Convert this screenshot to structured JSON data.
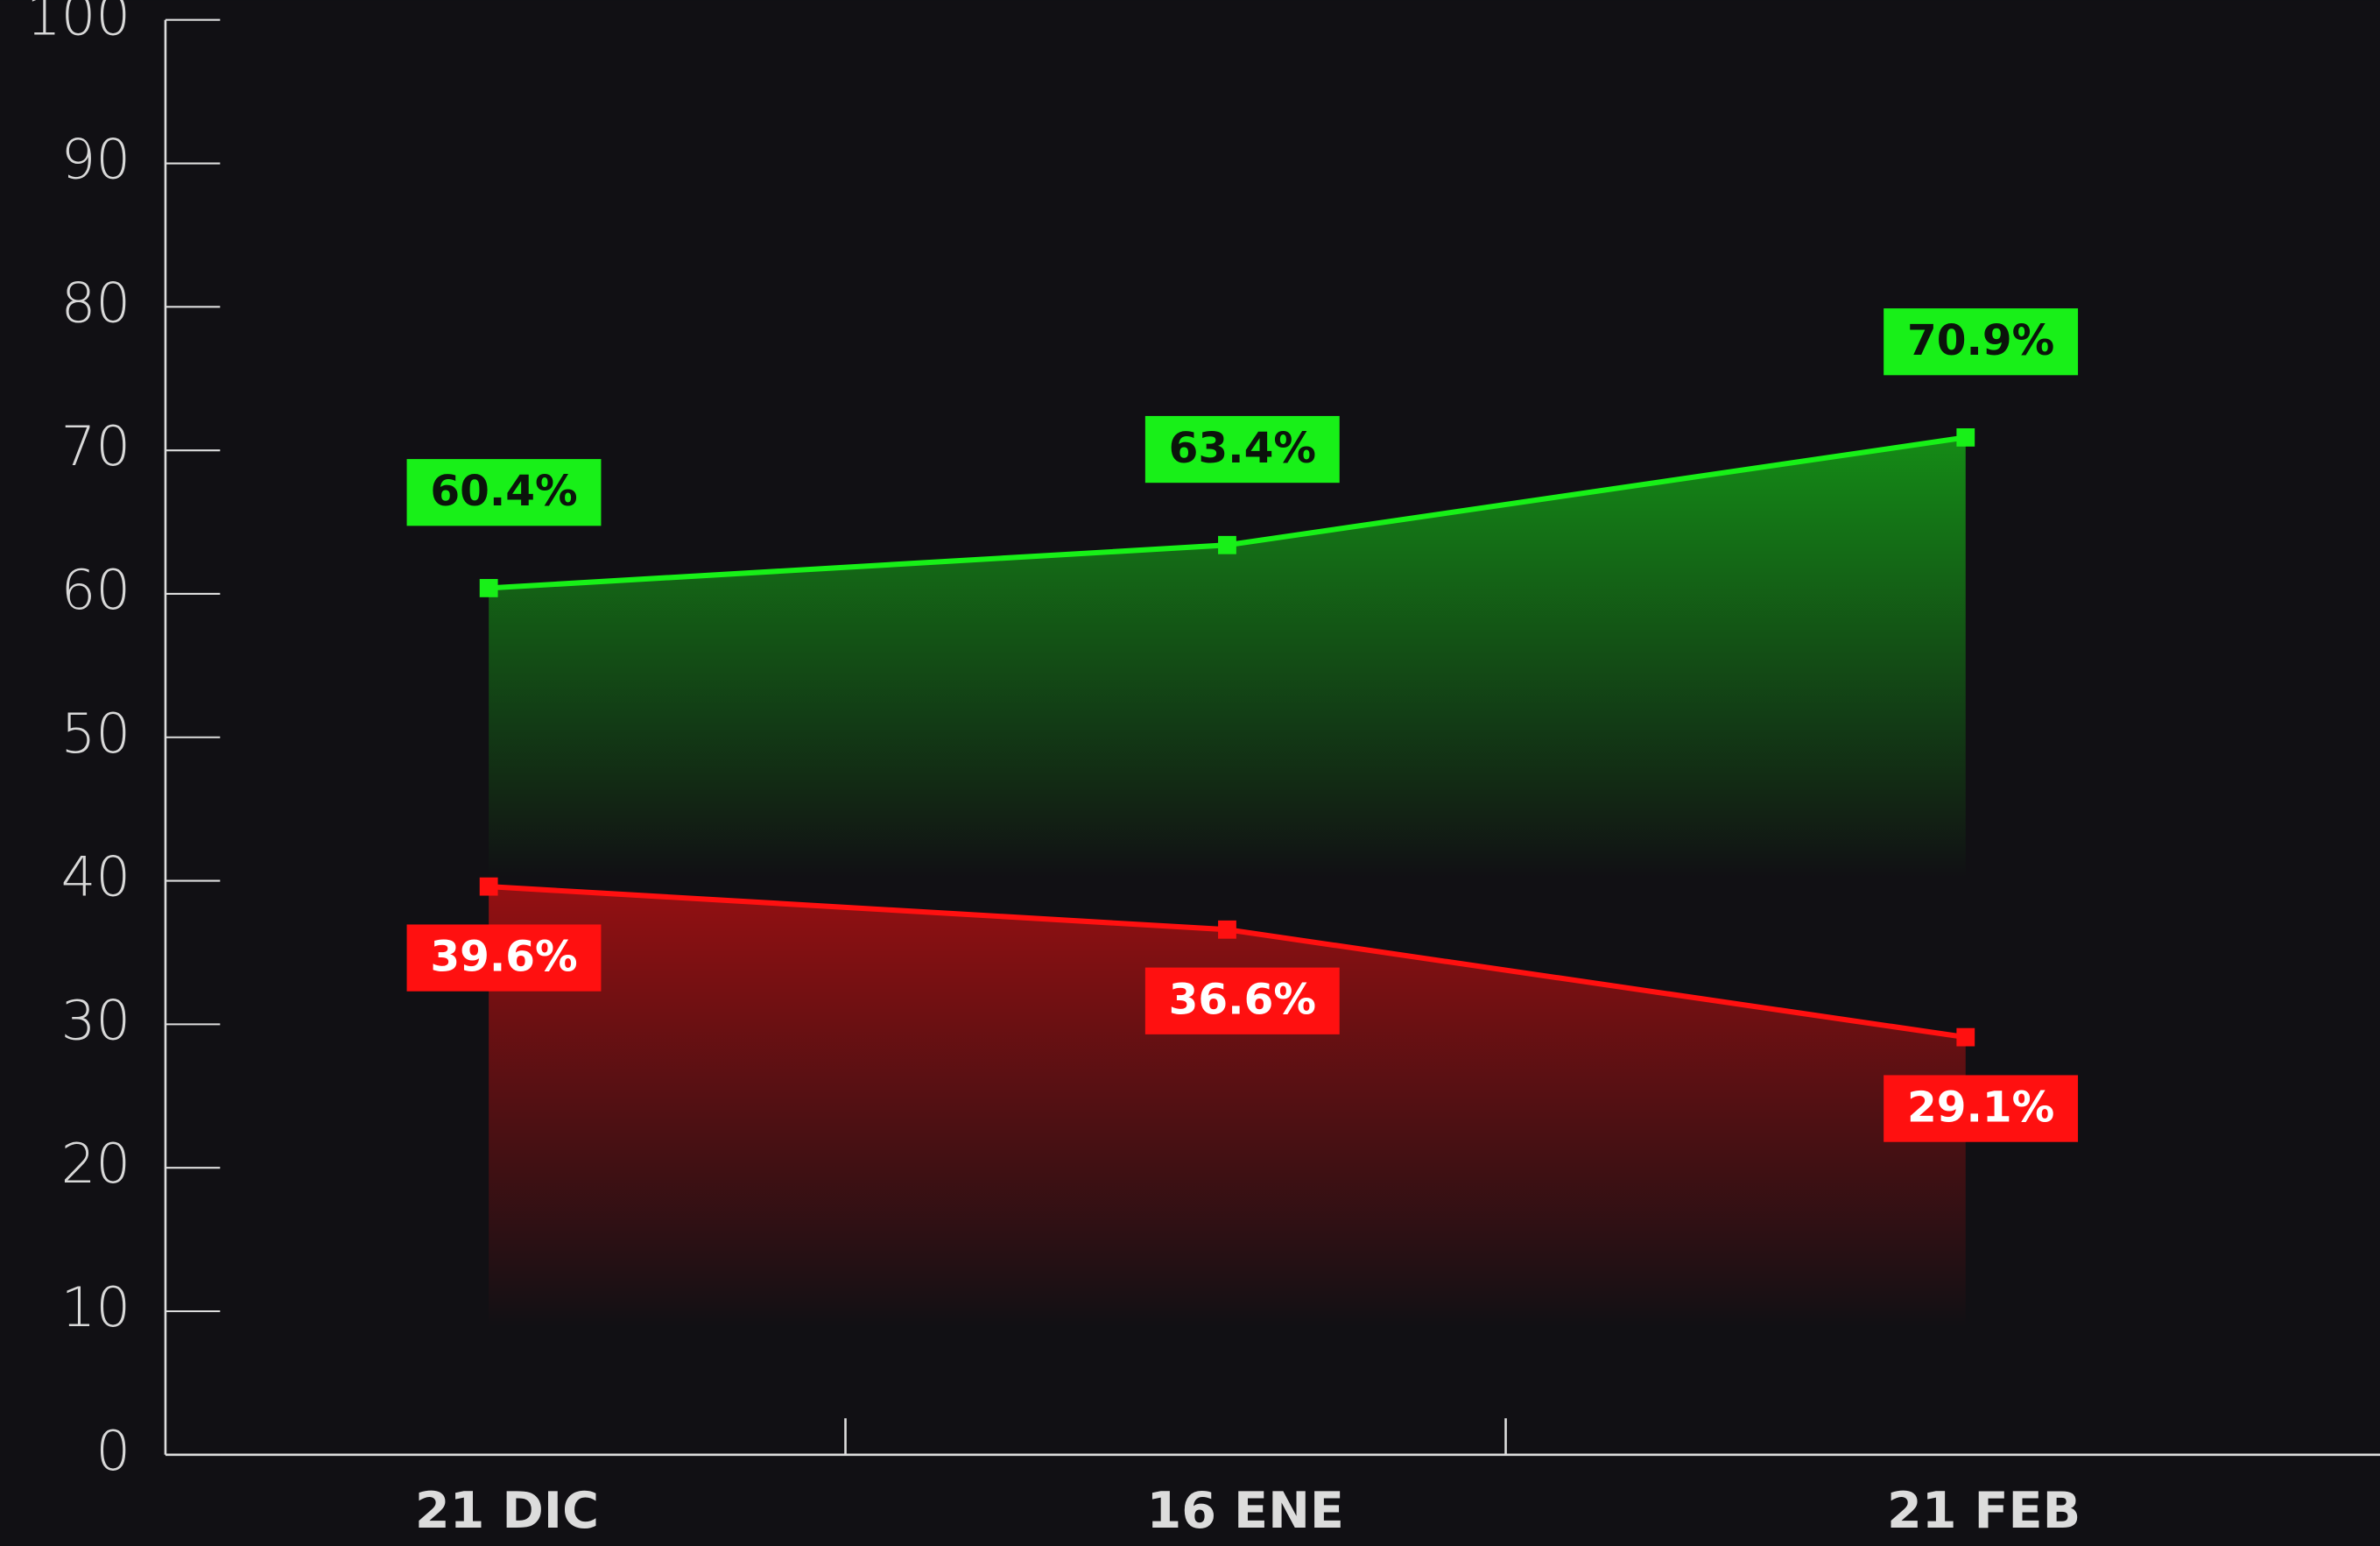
{
  "chart_data": {
    "type": "line",
    "categories": [
      "21 DIC",
      "16 ENE",
      "21 FEB"
    ],
    "series": [
      {
        "name": null,
        "color": "#18f018",
        "values": [
          60.4,
          63.4,
          70.9
        ],
        "value_labels": [
          "60.4%",
          "63.4%",
          "70.9%"
        ],
        "label_position": "above",
        "label_text_color": "#0b140b"
      },
      {
        "name": null,
        "color": "#ff1010",
        "values": [
          39.6,
          36.6,
          29.1
        ],
        "value_labels": [
          "39.6%",
          "36.6%",
          "29.1%"
        ],
        "label_position": "below",
        "label_text_color": "#ffffff"
      }
    ],
    "ylim": [
      0,
      100
    ],
    "yticks": [
      0,
      10,
      20,
      30,
      40,
      50,
      60,
      70,
      80,
      90,
      100
    ],
    "grid": false,
    "area_fill": true
  }
}
